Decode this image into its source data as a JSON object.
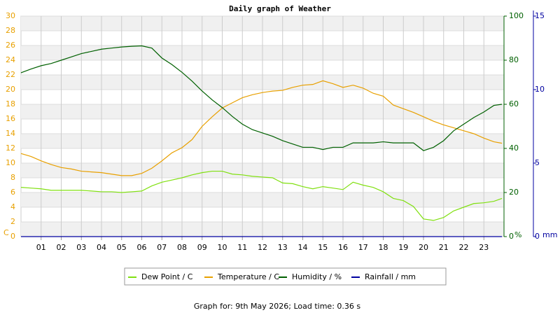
{
  "chart_data": {
    "type": "line",
    "title": "Daily graph of Weather",
    "footer": "Graph for: 9th May 2026; Load time: 0.36 s",
    "ylabel": "C",
    "y2label": "%",
    "y3label": "mm",
    "xlim": [
      0,
      24
    ],
    "xticks": [
      {
        "value": 1,
        "label": "01"
      },
      {
        "value": 2,
        "label": "02"
      },
      {
        "value": 3,
        "label": "03"
      },
      {
        "value": 4,
        "label": "04"
      },
      {
        "value": 5,
        "label": "05"
      },
      {
        "value": 6,
        "label": "06"
      },
      {
        "value": 7,
        "label": "07"
      },
      {
        "value": 8,
        "label": "08"
      },
      {
        "value": 9,
        "label": "09"
      },
      10,
      11,
      12,
      13,
      14,
      15,
      16,
      17,
      18,
      19,
      20,
      21,
      22,
      23
    ],
    "ylim": [
      0,
      30
    ],
    "yticks": [
      0,
      2,
      4,
      6,
      8,
      10,
      12,
      14,
      16,
      18,
      20,
      22,
      24,
      26,
      28,
      30
    ],
    "y2lim": [
      0,
      100
    ],
    "y2ticks": [
      0,
      20,
      40,
      60,
      80,
      100
    ],
    "y3lim": [
      0,
      15
    ],
    "y3ticks": [
      0,
      5,
      10,
      15
    ],
    "grid": true,
    "x": [
      0,
      0.5,
      1,
      1.5,
      2,
      2.5,
      3,
      3.5,
      4,
      4.5,
      5,
      5.5,
      6,
      6.5,
      7,
      7.5,
      8,
      8.5,
      9,
      9.5,
      10,
      10.5,
      11,
      11.5,
      12,
      12.5,
      13,
      13.5,
      14,
      14.5,
      15,
      15.5,
      16,
      16.5,
      17,
      17.5,
      18,
      18.5,
      19,
      19.5,
      20,
      20.5,
      21,
      21.5,
      22,
      22.5,
      23,
      23.5,
      23.9
    ],
    "series": [
      {
        "name": "Dew Point / C",
        "color": "#80e010",
        "axis": "y",
        "values": [
          6.7,
          6.6,
          6.5,
          6.3,
          6.3,
          6.3,
          6.3,
          6.2,
          6.1,
          6.1,
          6.0,
          6.1,
          6.2,
          6.9,
          7.4,
          7.7,
          8.0,
          8.4,
          8.7,
          8.9,
          8.9,
          8.5,
          8.4,
          8.2,
          8.1,
          8.0,
          7.3,
          7.2,
          6.8,
          6.5,
          6.8,
          6.6,
          6.4,
          7.4,
          7.0,
          6.7,
          6.1,
          5.2,
          4.9,
          4.1,
          2.4,
          2.2,
          2.6,
          3.5,
          4.0,
          4.5,
          4.6,
          4.8,
          5.2
        ]
      },
      {
        "name": "Temperature / C",
        "color": "#e8a000",
        "axis": "y",
        "values": [
          11.3,
          10.9,
          10.3,
          9.8,
          9.4,
          9.2,
          8.9,
          8.8,
          8.7,
          8.5,
          8.3,
          8.3,
          8.6,
          9.3,
          10.3,
          11.4,
          12.1,
          13.2,
          15.0,
          16.3,
          17.5,
          18.2,
          18.9,
          19.3,
          19.6,
          19.8,
          19.9,
          20.3,
          20.6,
          20.7,
          21.2,
          20.8,
          20.3,
          20.6,
          20.2,
          19.5,
          19.1,
          17.9,
          17.4,
          16.9,
          16.3,
          15.7,
          15.2,
          14.8,
          14.4,
          14.0,
          13.4,
          12.9,
          12.7
        ]
      },
      {
        "name": "Humidity / %",
        "color": "#006000",
        "axis": "y2",
        "values": [
          74.3,
          76,
          77.5,
          78.5,
          80,
          81.5,
          83,
          84,
          85,
          85.5,
          86,
          86.3,
          86.5,
          85.5,
          81,
          78,
          74.5,
          70.5,
          66,
          62,
          58.5,
          54.5,
          51,
          48.5,
          47,
          45.5,
          43.5,
          42,
          40.5,
          40.5,
          39.5,
          40.5,
          40.5,
          42.5,
          42.5,
          42.5,
          43,
          42.5,
          42.5,
          42.5,
          39,
          40.5,
          43.5,
          48,
          51,
          54,
          56.5,
          59.5,
          60
        ]
      },
      {
        "name": "Rainfall / mm",
        "color": "#0000a0",
        "axis": "y3",
        "values": [
          0,
          0,
          0,
          0,
          0,
          0,
          0,
          0,
          0,
          0,
          0,
          0,
          0,
          0,
          0,
          0,
          0,
          0,
          0,
          0,
          0,
          0,
          0,
          0,
          0,
          0,
          0,
          0,
          0,
          0,
          0,
          0,
          0,
          0,
          0,
          0,
          0,
          0,
          0,
          0,
          0,
          0,
          0,
          0,
          0,
          0,
          0,
          0,
          0
        ]
      }
    ]
  }
}
